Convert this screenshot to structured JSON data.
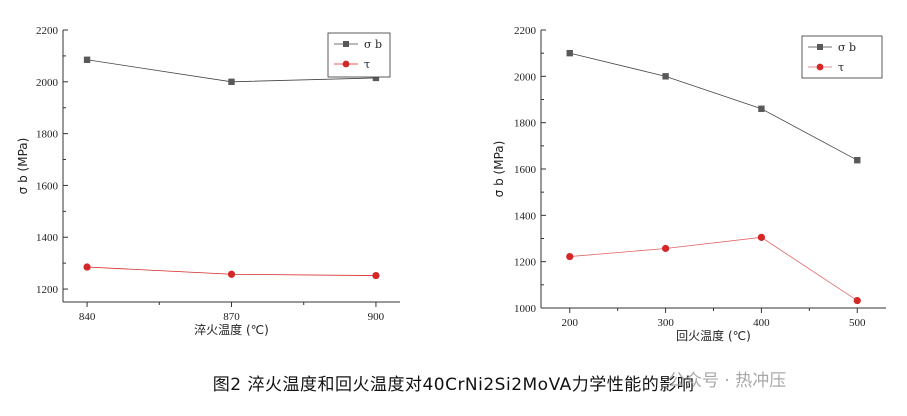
{
  "chart_data": [
    {
      "type": "line",
      "xlabel": "淬火温度 (℃)",
      "ylabel": "σ b (MPa)",
      "x": [
        840,
        870,
        900
      ],
      "xticks": [
        840,
        870,
        900
      ],
      "xlim": [
        835,
        905
      ],
      "ylim": [
        1150,
        2200
      ],
      "yticks": [
        1200,
        1400,
        1600,
        1800,
        2000,
        2200
      ],
      "legend_position": "top-right",
      "grid": false,
      "series": [
        {
          "name": "σ b",
          "values": [
            2085,
            2000,
            2015
          ],
          "color": "#595959",
          "marker": "square",
          "line_color": "#444444"
        },
        {
          "name": "τ",
          "values": [
            1285,
            1257,
            1252
          ],
          "color": "#d62728",
          "marker": "circle",
          "line_color": "#d62728"
        }
      ]
    },
    {
      "type": "line",
      "xlabel": "回火温度 (℃)",
      "ylabel": "σ b (MPa)",
      "x": [
        200,
        300,
        400,
        500
      ],
      "xticks": [
        200,
        300,
        400,
        500
      ],
      "xlim": [
        170,
        530
      ],
      "ylim": [
        1000,
        2200
      ],
      "yticks": [
        1000,
        1200,
        1400,
        1600,
        1800,
        2000,
        2200
      ],
      "legend_position": "top-right",
      "grid": false,
      "series": [
        {
          "name": "σ b",
          "values": [
            2100,
            2000,
            1860,
            1638
          ],
          "color": "#595959",
          "marker": "square",
          "line_color": "#444444"
        },
        {
          "name": "τ",
          "values": [
            1222,
            1257,
            1305,
            1032
          ],
          "color": "#d62728",
          "marker": "circle",
          "line_color": "#e06666"
        }
      ]
    }
  ],
  "caption": "图2  淬火温度和回火温度对40CrNi2Si2MoVA力学性能的影响",
  "watermark": "公众号 · 热冲压"
}
